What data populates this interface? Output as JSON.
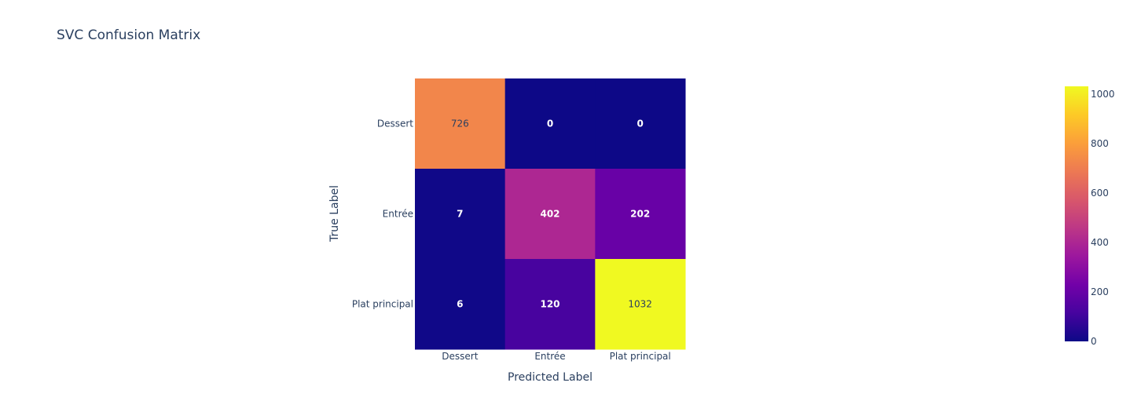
{
  "chart_data": {
    "type": "heatmap",
    "title": "SVC Confusion Matrix",
    "xlabel": "Predicted Label",
    "ylabel": "True Label",
    "x_categories": [
      "Dessert",
      "Entrée",
      "Plat principal"
    ],
    "y_categories": [
      "Dessert",
      "Entrée",
      "Plat principal"
    ],
    "values": [
      [
        726,
        0,
        0
      ],
      [
        7,
        402,
        202
      ],
      [
        6,
        120,
        1032
      ]
    ],
    "zlim": [
      0,
      1032
    ],
    "colorscale": "plasma",
    "colorscale_stops": [
      "#0d0887",
      "#46039f",
      "#7201a8",
      "#9c179e",
      "#bd3786",
      "#d8576b",
      "#ed7953",
      "#fb9f3a",
      "#fdca26",
      "#f0f921"
    ],
    "colorbar_ticks": [
      "0",
      "200",
      "400",
      "600",
      "800",
      "1000"
    ],
    "colorbar_tick_values": [
      0,
      200,
      400,
      600,
      800,
      1000
    ],
    "legend_placement": "right"
  }
}
